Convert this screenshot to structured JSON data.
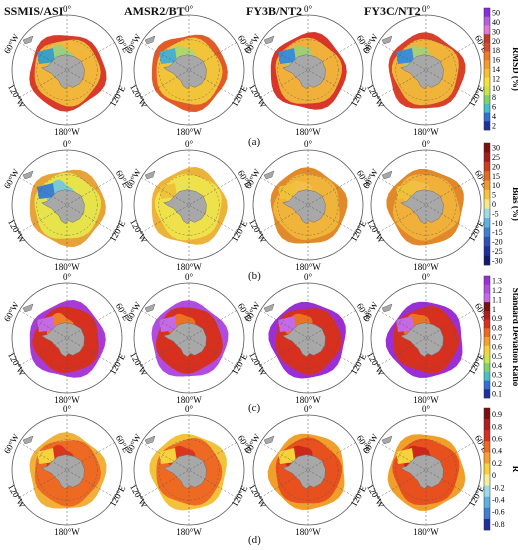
{
  "column_titles": [
    "SSMIS/ASI",
    "AMSR2/BT",
    "FY3B/NT2",
    "FY3C/NT2"
  ],
  "map_labels": {
    "top": "0°",
    "bottom": "180°W",
    "upper_left": "60°W",
    "upper_right": "60°E",
    "lower_left": "120°W",
    "lower_right": "120°E"
  },
  "rows": [
    {
      "letter": "(a)",
      "colorbar_title": "RMSD (%)",
      "ticks": [
        "50",
        "40",
        "30",
        "20",
        "18",
        "16",
        "14",
        "12",
        "10",
        "8",
        "6",
        "4",
        "2"
      ],
      "colors": [
        "#8a2be2",
        "#b35fe0",
        "#e07ad6",
        "#c0392b",
        "#d94a2a",
        "#ee7a22",
        "#f59a2e",
        "#f7c02f",
        "#f5e33b",
        "#c8e646",
        "#7fd36a",
        "#45c2c6",
        "#2f6fd6",
        "#1f2f9e"
      ],
      "maps": [
        {
          "ice": "#f1b63a",
          "edge": "#d93b2a",
          "inner": "#8fd28a",
          "wedge": "#3aa0c8"
        },
        {
          "ice": "#f2c43a",
          "edge": "#e25a28",
          "inner": "#a5d872",
          "wedge": "#49b0d0"
        },
        {
          "ice": "#f0b03a",
          "edge": "#d9352a",
          "inner": "#9bd07a",
          "wedge": "#3c8dd8"
        },
        {
          "ice": "#f0b43a",
          "edge": "#d9402a",
          "inner": "#a0d27a",
          "wedge": "#3c8dd8"
        }
      ]
    },
    {
      "letter": "(b)",
      "colorbar_title": "Bias (%)",
      "ticks": [
        "30",
        "25",
        "20",
        "15",
        "10",
        "5",
        "0",
        "-5",
        "-10",
        "-15",
        "-20",
        "-25",
        "-30"
      ],
      "colors": [
        "#7a1010",
        "#a31c1c",
        "#cc3b1e",
        "#e26a22",
        "#f09a2a",
        "#f6c33a",
        "#f7e68a",
        "#9ed9e8",
        "#5fb0e0",
        "#3f7fd0",
        "#2c52b8",
        "#1f2f9e",
        "#141a6e"
      ],
      "maps": [
        {
          "ice": "#e7e34a",
          "edge": "#e8a23a",
          "inner": "#6ec5e4",
          "wedge": "#3f7fd0"
        },
        {
          "ice": "#efe14a",
          "edge": "#ecb23a",
          "inner": "#e9e35a",
          "wedge": "#f0c23a"
        },
        {
          "ice": "#f0b43a",
          "edge": "#e08a2a",
          "inner": "#f2c04a",
          "wedge": "#f0c23a"
        },
        {
          "ice": "#f0b03a",
          "edge": "#e0882a",
          "inner": "#f2c04a",
          "wedge": "#f0c23a"
        }
      ]
    },
    {
      "letter": "(c)",
      "colorbar_title": "Standard Deviation Ratio",
      "ticks": [
        "1.3",
        "1.2",
        "1.1",
        "1",
        "0.9",
        "0.8",
        "0.7",
        "0.6",
        "0.5",
        "0.4",
        "0.3",
        "0.2",
        "0.1"
      ],
      "colors": [
        "#9b2fd6",
        "#b04de0",
        "#c46ae6",
        "#7a1010",
        "#b11d1d",
        "#d8301e",
        "#ee6a22",
        "#f5a02c",
        "#f6d23a",
        "#c9e64a",
        "#7fd36a",
        "#45c2c6",
        "#2f6fd6",
        "#1f2f9e"
      ],
      "maps": [
        {
          "ice": "#d8301e",
          "edge": "#a83ad6",
          "inner": "#f08a2a",
          "wedge": "#c46ae6"
        },
        {
          "ice": "#d8301e",
          "edge": "#b04de0",
          "inner": "#ee7a22",
          "wedge": "#c46ae6"
        },
        {
          "ice": "#d8301e",
          "edge": "#9b2fd6",
          "inner": "#ee7a22",
          "wedge": "#c46ae6"
        },
        {
          "ice": "#d8301e",
          "edge": "#9b2fd6",
          "inner": "#ee7a22",
          "wedge": "#c46ae6"
        }
      ]
    },
    {
      "letter": "(d)",
      "colorbar_title": "R",
      "ticks": [
        "0.9",
        "0.8",
        "0.6",
        "0.4",
        "0.2",
        "0",
        "-0.2",
        "-0.4",
        "-0.6",
        "-0.8"
      ],
      "colors": [
        "#7a1010",
        "#b11d1d",
        "#d8301e",
        "#ee6a22",
        "#f5a02c",
        "#f7d23a",
        "#f2ee9a",
        "#9ed9e8",
        "#5fb0e0",
        "#3f7fd0",
        "#1f2f9e"
      ],
      "maps": [
        {
          "ice": "#ee6a22",
          "edge": "#f0b03a",
          "inner": "#d8301e",
          "wedge": "#f7d23a"
        },
        {
          "ice": "#ee6a22",
          "edge": "#f2c23a",
          "inner": "#d8301e",
          "wedge": "#f7d23a"
        },
        {
          "ice": "#e8501e",
          "edge": "#f0a02a",
          "inner": "#c8241a",
          "wedge": "#f7d23a"
        },
        {
          "ice": "#e8501e",
          "edge": "#f0a02a",
          "inner": "#c8241a",
          "wedge": "#f7d23a"
        }
      ]
    }
  ]
}
